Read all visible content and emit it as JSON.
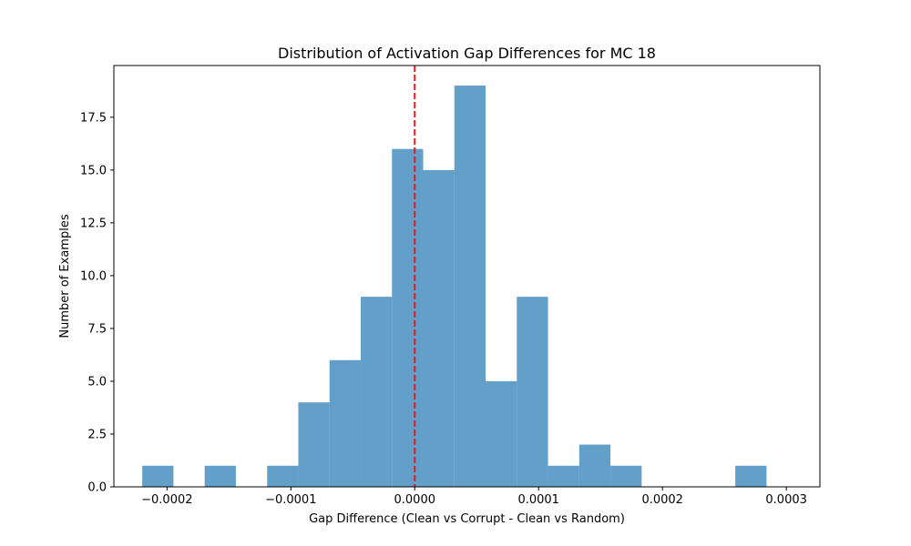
{
  "chart_data": {
    "type": "histogram",
    "title": "Distribution of Activation Gap Differences for MC 18",
    "xlabel": "Gap Difference (Clean vs Corrupt - Clean vs Random)",
    "ylabel": "Number of Examples",
    "xlim": [
      -0.0002429,
      0.0003271
    ],
    "ylim": [
      0,
      19.95
    ],
    "bin_edges": [
      -0.00022,
      -0.0001948,
      -0.0001696,
      -0.0001444,
      -0.0001192,
      -9.4e-05,
      -6.88e-05,
      -4.36e-05,
      -1.84e-05,
      6.8e-06,
      3.2e-05,
      5.72e-05,
      8.24e-05,
      0.0001076,
      0.0001328,
      0.000158,
      0.0001832,
      0.0002084,
      0.0002336,
      0.0002588,
      0.000284
    ],
    "counts": [
      1,
      0,
      1,
      0,
      1,
      4,
      6,
      9,
      16,
      15,
      19,
      5,
      9,
      1,
      2,
      1,
      0,
      0,
      0,
      1
    ],
    "bar_color": "#1f77b4",
    "bar_alpha": 0.7,
    "reference_line": {
      "x": 0,
      "color": "#e41a1c",
      "style": "dashed"
    },
    "x_ticks": [
      {
        "value": -0.0002,
        "label": "−0.0002"
      },
      {
        "value": -0.0001,
        "label": "−0.0001"
      },
      {
        "value": 0,
        "label": "0.0000"
      },
      {
        "value": 0.0001,
        "label": "0.0001"
      },
      {
        "value": 0.0002,
        "label": "0.0002"
      },
      {
        "value": 0.0003,
        "label": "0.0003"
      }
    ],
    "y_ticks": [
      {
        "value": 0,
        "label": "0.0"
      },
      {
        "value": 2.5,
        "label": "2.5"
      },
      {
        "value": 5,
        "label": "5.0"
      },
      {
        "value": 7.5,
        "label": "7.5"
      },
      {
        "value": 10,
        "label": "10.0"
      },
      {
        "value": 12.5,
        "label": "12.5"
      },
      {
        "value": 15,
        "label": "15.0"
      },
      {
        "value": 17.5,
        "label": "17.5"
      }
    ]
  }
}
